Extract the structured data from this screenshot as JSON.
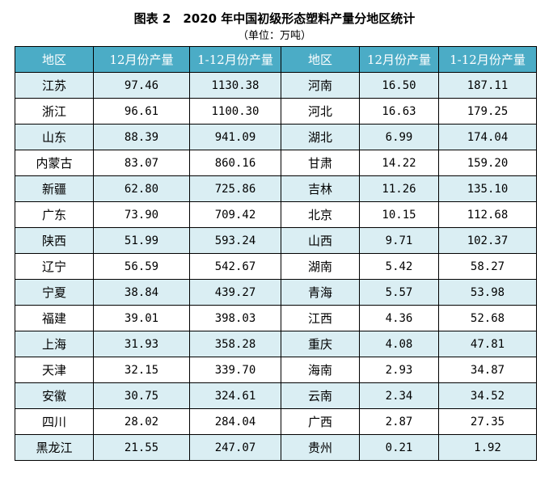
{
  "title": "图表 2　2020 年中国初级形态塑料产量分地区统计",
  "subtitle": "（单位：万吨）",
  "colors": {
    "header_bg": "#4bacc6",
    "alt_row_bg": "#daeef3"
  },
  "table": {
    "headers": [
      "地区",
      "12月份产量",
      "1-12月份产量",
      "地区",
      "12月份产量",
      "1-12月份产量"
    ],
    "rows": [
      [
        "江苏",
        "97.46",
        "1130.38",
        "河南",
        "16.50",
        "187.11"
      ],
      [
        "浙江",
        "96.61",
        "1100.30",
        "河北",
        "16.63",
        "179.25"
      ],
      [
        "山东",
        "88.39",
        "941.09",
        "湖北",
        "6.99",
        "174.04"
      ],
      [
        "内蒙古",
        "83.07",
        "860.16",
        "甘肃",
        "14.22",
        "159.20"
      ],
      [
        "新疆",
        "62.80",
        "725.86",
        "吉林",
        "11.26",
        "135.10"
      ],
      [
        "广东",
        "73.90",
        "709.42",
        "北京",
        "10.15",
        "112.68"
      ],
      [
        "陕西",
        "51.99",
        "593.24",
        "山西",
        "9.71",
        "102.37"
      ],
      [
        "辽宁",
        "56.59",
        "542.67",
        "湖南",
        "5.42",
        "58.27"
      ],
      [
        "宁夏",
        "38.84",
        "439.27",
        "青海",
        "5.57",
        "53.98"
      ],
      [
        "福建",
        "39.01",
        "398.03",
        "江西",
        "4.36",
        "52.68"
      ],
      [
        "上海",
        "31.93",
        "358.28",
        "重庆",
        "4.08",
        "47.81"
      ],
      [
        "天津",
        "32.15",
        "339.70",
        "海南",
        "2.93",
        "34.87"
      ],
      [
        "安徽",
        "30.75",
        "324.61",
        "云南",
        "2.34",
        "34.52"
      ],
      [
        "四川",
        "28.02",
        "284.04",
        "广西",
        "2.87",
        "27.35"
      ],
      [
        "黑龙江",
        "21.55",
        "247.07",
        "贵州",
        "0.21",
        "1.92"
      ]
    ]
  }
}
